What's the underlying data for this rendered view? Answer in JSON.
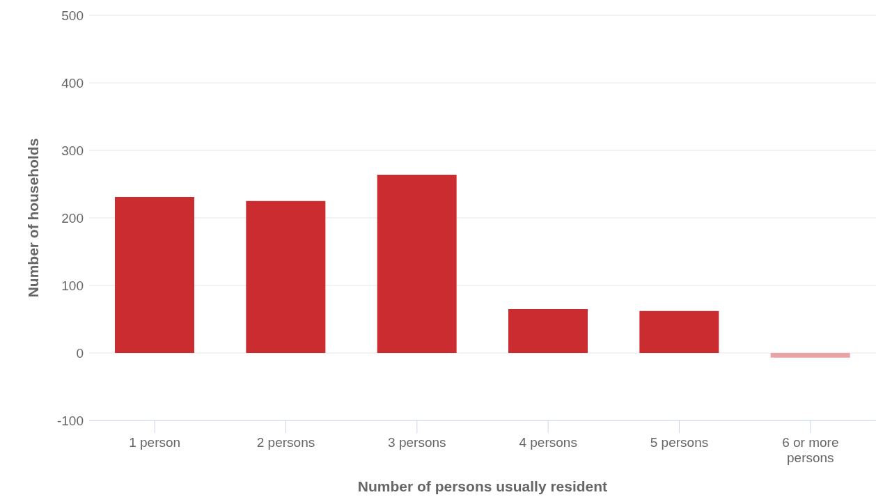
{
  "chart_data": {
    "type": "bar",
    "xlabel": "Number of persons usually resident",
    "ylabel": "Number of households",
    "categories": [
      "1 person",
      "2 persons",
      "3 persons",
      "4 persons",
      "5 persons",
      "6 or more persons"
    ],
    "values": [
      231,
      225,
      264,
      65,
      62,
      -7
    ],
    "colors": [
      "#cb2c30",
      "#cb2c30",
      "#cb2c30",
      "#cb2c30",
      "#cb2c30",
      "#eaa3a5"
    ],
    "ylim": [
      -100,
      500
    ],
    "yticks": [
      -100,
      0,
      100,
      200,
      300,
      400,
      500
    ],
    "grid": "y",
    "legend": false
  }
}
